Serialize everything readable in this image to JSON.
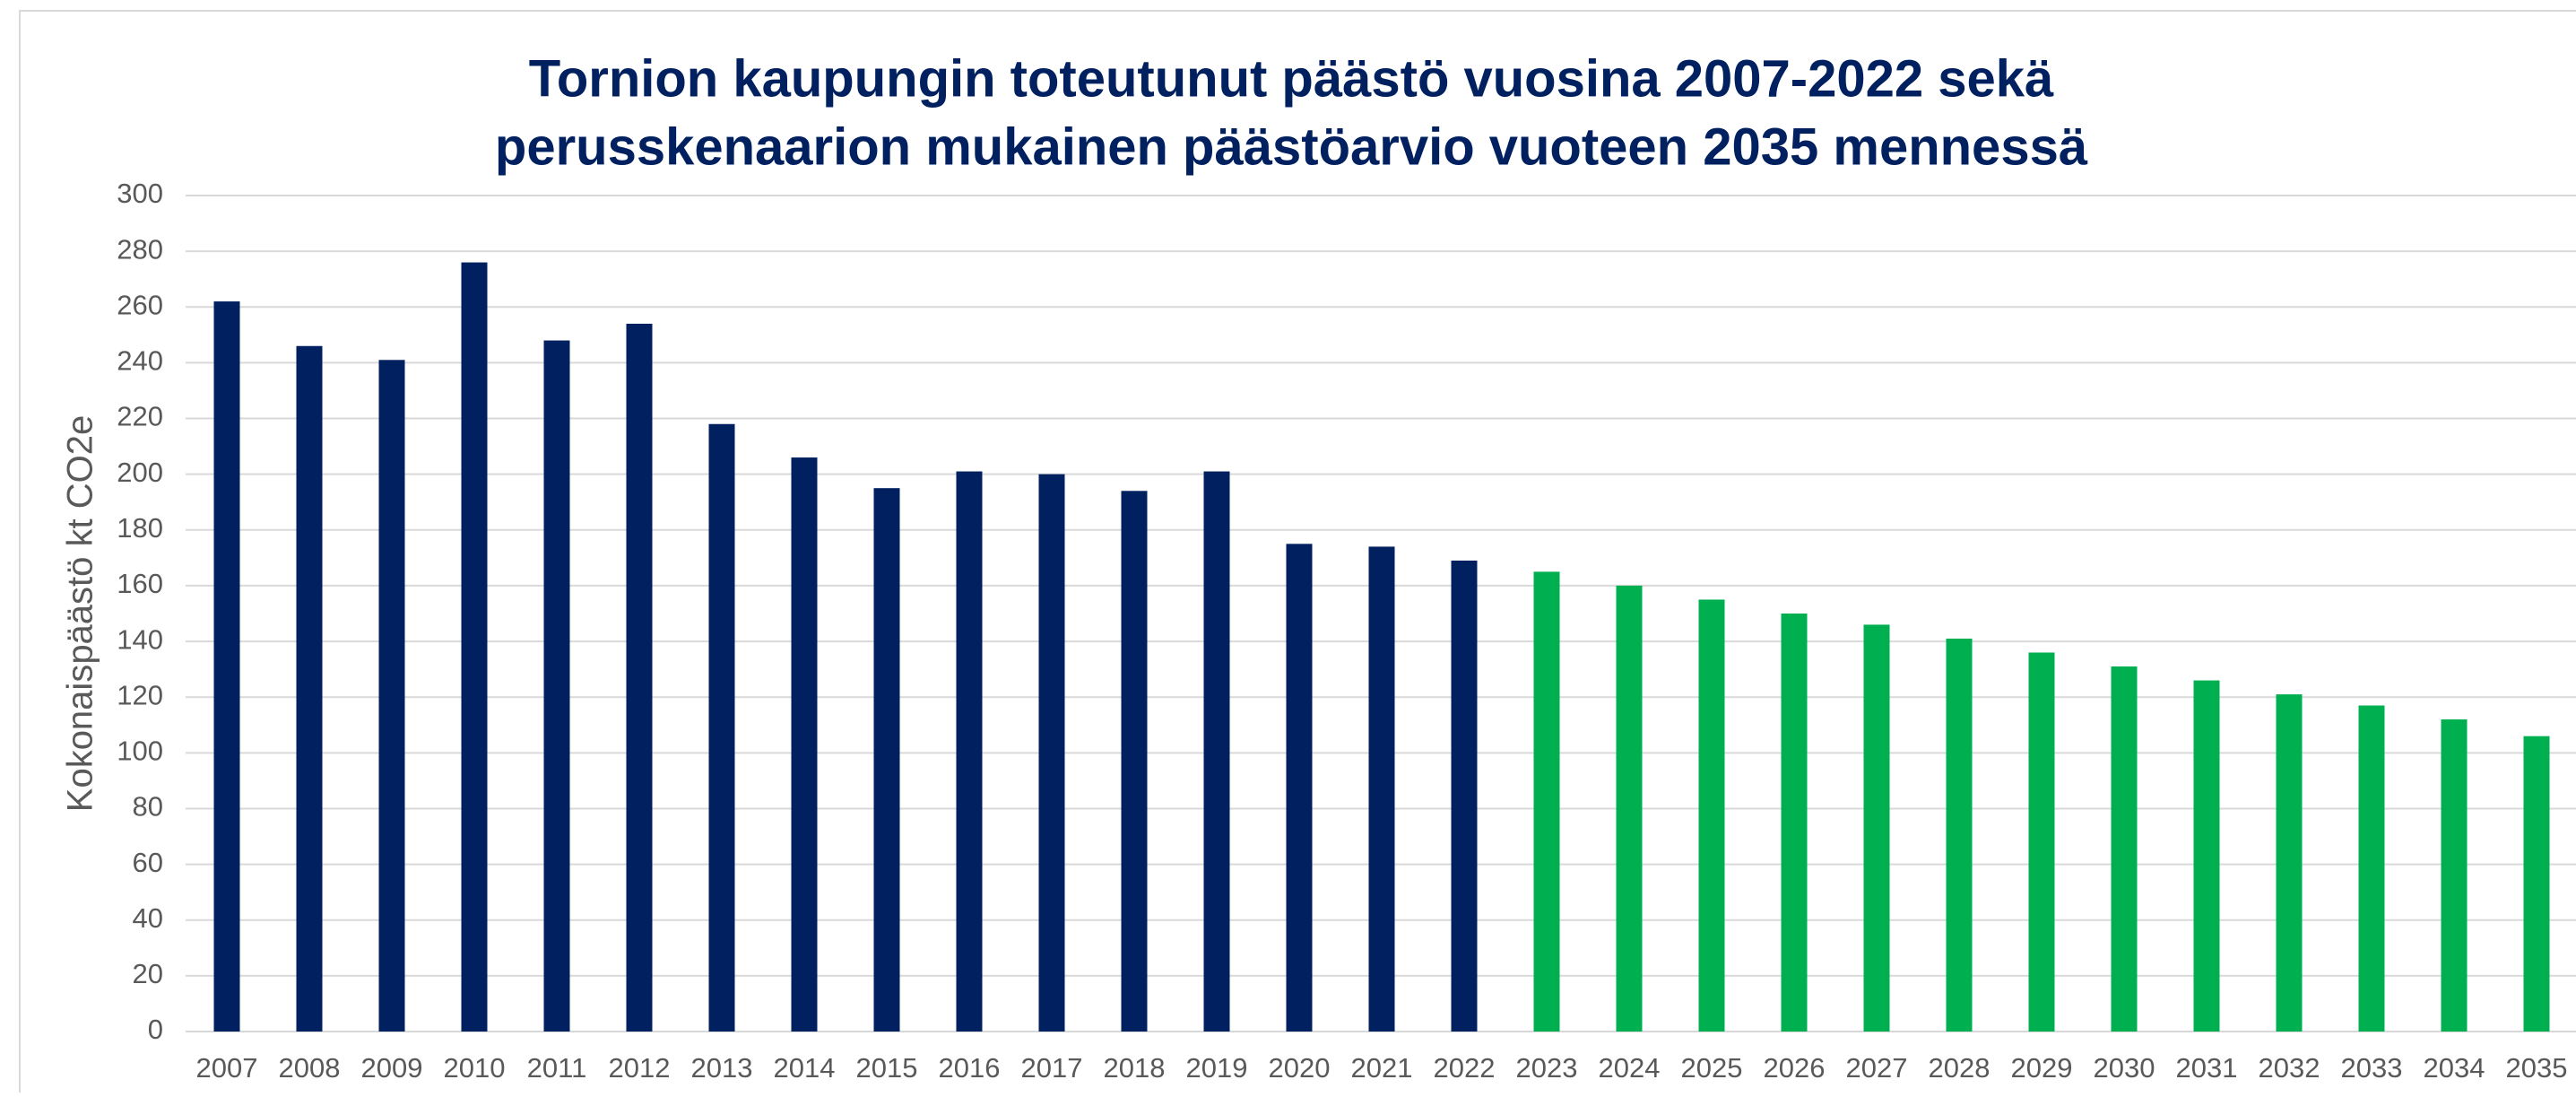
{
  "chart_data": {
    "type": "bar",
    "title": [
      "Tornion kaupungin toteutunut päästö vuosina 2007-2022 sekä",
      "perusskenaarion mukainen päästöarvio vuoteen 2035 mennessä"
    ],
    "y_label": "Kokonaispäästö kt CO2e",
    "categories": [
      "2007",
      "2008",
      "2009",
      "2010",
      "2011",
      "2012",
      "2013",
      "2014",
      "2015",
      "2016",
      "2017",
      "2018",
      "2019",
      "2020",
      "2021",
      "2022",
      "2023",
      "2024",
      "2025",
      "2026",
      "2027",
      "2028",
      "2029",
      "2030",
      "2031",
      "2032",
      "2033",
      "2034",
      "2035"
    ],
    "values": [
      262,
      246,
      241,
      276,
      248,
      254,
      218,
      206,
      195,
      201,
      200,
      194,
      201,
      175,
      174,
      169,
      165,
      160,
      155,
      150,
      146,
      141,
      136,
      131,
      126,
      121,
      117,
      112,
      106
    ],
    "colors": [
      "#002060",
      "#002060",
      "#002060",
      "#002060",
      "#002060",
      "#002060",
      "#002060",
      "#002060",
      "#002060",
      "#002060",
      "#002060",
      "#002060",
      "#002060",
      "#002060",
      "#002060",
      "#002060",
      "#00b050",
      "#00b050",
      "#00b050",
      "#00b050",
      "#00b050",
      "#00b050",
      "#00b050",
      "#00b050",
      "#00b050",
      "#00b050",
      "#00b050",
      "#00b050",
      "#00b050"
    ],
    "ylim": [
      0,
      300
    ],
    "yticks": [
      0,
      20,
      40,
      60,
      80,
      100,
      120,
      140,
      160,
      180,
      200,
      220,
      240,
      260,
      280,
      300
    ],
    "grid": true
  }
}
